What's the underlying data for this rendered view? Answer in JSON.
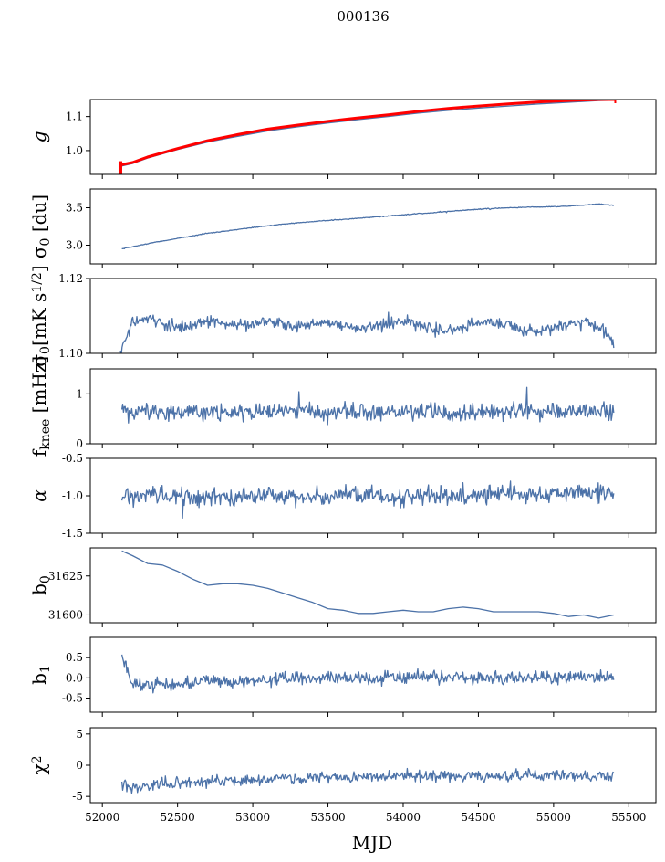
{
  "chart_data": {
    "type": "line",
    "title": "000136",
    "xlabel": "MJD",
    "x_range": [
      51920,
      55680
    ],
    "x_ticks": [
      "52000",
      "52500",
      "53000",
      "53500",
      "54000",
      "54500",
      "55000",
      "55500"
    ],
    "x_tick_values": [
      52000,
      52500,
      53000,
      53500,
      54000,
      54500,
      55000,
      55500
    ],
    "line_color": "#4c72a8",
    "overlay_color": "#ff0000",
    "grid": false,
    "panels": [
      {
        "id": "g",
        "ylabel": "g",
        "ylim": [
          0.93,
          1.15
        ],
        "y_ticks": [
          "1.0",
          "1.1"
        ],
        "y_tick_values": [
          1.0,
          1.1
        ],
        "series": [
          {
            "role": "data",
            "x": [
              52120,
              52200,
              52300,
              52500,
              52700,
              52900,
              53100,
              53300,
              53500,
              53700,
              53900,
              54100,
              54300,
              54500,
              54700,
              54900,
              55100,
              55300,
              55400
            ],
            "y": [
              0.954,
              0.962,
              0.978,
              1.003,
              1.025,
              1.042,
              1.058,
              1.07,
              1.081,
              1.091,
              1.1,
              1.11,
              1.118,
              1.125,
              1.131,
              1.137,
              1.142,
              1.147,
              1.148
            ]
          },
          {
            "role": "overlay",
            "x": [
              52120,
              52200,
              52300,
              52500,
              52700,
              52900,
              53100,
              53300,
              53500,
              53700,
              53900,
              54100,
              54300,
              54500,
              54700,
              54900,
              55100,
              55300,
              55410
            ],
            "y": [
              0.958,
              0.965,
              0.981,
              1.006,
              1.029,
              1.047,
              1.063,
              1.075,
              1.086,
              1.096,
              1.105,
              1.115,
              1.124,
              1.131,
              1.137,
              1.143,
              1.147,
              1.15,
              1.15
            ]
          }
        ]
      },
      {
        "id": "sigma0-du",
        "ylabel": "σ0 [du]",
        "ylim": [
          2.75,
          3.75
        ],
        "y_ticks": [
          "3.0",
          "3.5"
        ],
        "y_tick_values": [
          3.0,
          3.5
        ],
        "series": [
          {
            "role": "data",
            "x": [
              52130,
              52300,
              52500,
              52700,
              52900,
              53100,
              53300,
              53500,
              53700,
              53900,
              54100,
              54300,
              54500,
              54700,
              54900,
              55100,
              55300,
              55400
            ],
            "y": [
              2.95,
              3.02,
              3.09,
              3.16,
              3.21,
              3.26,
              3.3,
              3.33,
              3.36,
              3.39,
              3.42,
              3.45,
              3.48,
              3.5,
              3.51,
              3.52,
              3.55,
              3.53
            ]
          }
        ]
      },
      {
        "id": "sigma0-mk",
        "ylabel": "σ0[mK s1/2]",
        "ylim": [
          1.1,
          1.12
        ],
        "y_ticks": [
          "1.10",
          "1.12"
        ],
        "y_tick_values": [
          1.1,
          1.12
        ],
        "series": [
          {
            "role": "data",
            "x": [
              52120,
              52150,
              52200,
              52300,
              52400,
              52500,
              52600,
              52700,
              52800,
              52900,
              53000,
              53100,
              53200,
              53300,
              53400,
              53500,
              53600,
              53700,
              53800,
              53900,
              54000,
              54100,
              54200,
              54300,
              54400,
              54500,
              54600,
              54700,
              54800,
              54900,
              55000,
              55100,
              55200,
              55300,
              55400
            ],
            "y": [
              1.1005,
              1.103,
              1.1085,
              1.109,
              1.108,
              1.107,
              1.1075,
              1.1085,
              1.108,
              1.1075,
              1.1078,
              1.1088,
              1.108,
              1.1072,
              1.1078,
              1.1085,
              1.1075,
              1.1065,
              1.107,
              1.108,
              1.1082,
              1.1075,
              1.1065,
              1.106,
              1.107,
              1.1082,
              1.1085,
              1.1076,
              1.1062,
              1.1058,
              1.1068,
              1.108,
              1.1084,
              1.107,
              1.103
            ]
          }
        ]
      },
      {
        "id": "fknee",
        "ylabel": "fknee [mHz]",
        "ylim": [
          0,
          1.5
        ],
        "y_ticks": [
          "0",
          "1"
        ],
        "y_tick_values": [
          0,
          1
        ],
        "series": [
          {
            "role": "data",
            "x": [
              52130,
              52300,
              52500,
              52700,
              52900,
              53100,
              53300,
              53500,
              53700,
              53900,
              54100,
              54300,
              54500,
              54700,
              54900,
              55100,
              55300,
              55400
            ],
            "y": [
              0.62,
              0.66,
              0.64,
              0.63,
              0.62,
              0.63,
              0.65,
              0.62,
              0.63,
              0.65,
              0.64,
              0.62,
              0.64,
              0.66,
              0.63,
              0.65,
              0.67,
              0.64
            ]
          }
        ]
      },
      {
        "id": "alpha",
        "ylabel": "α",
        "ylim": [
          -1.5,
          -0.5
        ],
        "y_ticks": [
          "-1.5",
          "-1.0",
          "-0.5"
        ],
        "y_tick_values": [
          -1.5,
          -1.0,
          -0.5
        ],
        "series": [
          {
            "role": "data",
            "x": [
              52130,
              52300,
              52500,
              52700,
              52900,
              53100,
              53300,
              53500,
              53700,
              53900,
              54100,
              54300,
              54500,
              54700,
              54900,
              55100,
              55300,
              55400
            ],
            "y": [
              -1.02,
              -0.98,
              -1.03,
              -1.0,
              -1.01,
              -0.99,
              -1.02,
              -1.0,
              -0.98,
              -1.01,
              -0.99,
              -1.0,
              -0.97,
              -0.96,
              -0.98,
              -0.95,
              -0.96,
              -0.94
            ]
          }
        ]
      },
      {
        "id": "b0",
        "ylabel": "b0",
        "ylim": [
          31595,
          31643
        ],
        "y_ticks": [
          "31600",
          "31625"
        ],
        "y_tick_values": [
          31600,
          31625
        ],
        "series": [
          {
            "role": "data",
            "x": [
              52130,
              52200,
              52300,
              52400,
              52500,
              52600,
              52700,
              52800,
              52900,
              53000,
              53100,
              53200,
              53300,
              53400,
              53500,
              53600,
              53700,
              53800,
              53900,
              54000,
              54100,
              54200,
              54300,
              54400,
              54500,
              54600,
              54700,
              54800,
              54900,
              55000,
              55100,
              55200,
              55300,
              55400
            ],
            "y": [
              31641,
              31638,
              31633,
              31632,
              31628,
              31623,
              31619,
              31620,
              31620,
              31619,
              31617,
              31614,
              31611,
              31608,
              31604,
              31603,
              31601,
              31601,
              31602,
              31603,
              31602,
              31602,
              31604,
              31605,
              31604,
              31602,
              31602,
              31602,
              31602,
              31601,
              31599,
              31600,
              31598,
              31600
            ]
          }
        ]
      },
      {
        "id": "b1",
        "ylabel": "b1",
        "ylim": [
          -0.85,
          1.0
        ],
        "y_ticks": [
          "-0.5",
          "0.0",
          "0.5"
        ],
        "y_tick_values": [
          -0.5,
          0.0,
          0.5
        ],
        "series": [
          {
            "role": "data",
            "x": [
              52130,
              52200,
              52300,
              52400,
              52500,
              52600,
              52700,
              52800,
              52900,
              53000,
              53100,
              53200,
              53300,
              53400,
              53500,
              53600,
              53700,
              53800,
              53900,
              54000,
              54100,
              54200,
              54300,
              54400,
              54500,
              54600,
              54700,
              54800,
              54900,
              55000,
              55100,
              55200,
              55300,
              55400
            ],
            "y": [
              0.55,
              -0.2,
              -0.18,
              -0.15,
              -0.2,
              -0.1,
              -0.05,
              -0.1,
              -0.08,
              -0.05,
              -0.08,
              -0.02,
              0.0,
              -0.05,
              0.02,
              -0.02,
              0.0,
              -0.05,
              0.0,
              0.02,
              0.05,
              0.03,
              0.0,
              0.02,
              -0.02,
              0.0,
              0.02,
              -0.05,
              0.0,
              -0.03,
              0.05,
              0.0,
              0.05,
              0.02
            ]
          }
        ]
      },
      {
        "id": "chi2",
        "ylabel": "χ2",
        "ylim": [
          -6,
          6
        ],
        "y_ticks": [
          "-5",
          "0",
          "5"
        ],
        "y_tick_values": [
          -5,
          0,
          5
        ],
        "series": [
          {
            "role": "data",
            "x": [
              52130,
              52200,
              52300,
              52400,
              52500,
              52600,
              52700,
              52800,
              52900,
              53000,
              53100,
              53200,
              53300,
              53400,
              53500,
              53600,
              53700,
              53800,
              53900,
              54000,
              54100,
              54200,
              54300,
              54400,
              54500,
              54600,
              54700,
              54800,
              54900,
              55000,
              55100,
              55200,
              55300,
              55400
            ],
            "y": [
              -3.0,
              -3.6,
              -3.2,
              -3.0,
              -3.0,
              -2.8,
              -2.6,
              -2.4,
              -2.4,
              -2.3,
              -2.2,
              -2.1,
              -2.2,
              -2.0,
              -2.0,
              -1.9,
              -1.8,
              -1.8,
              -1.9,
              -1.8,
              -1.7,
              -1.8,
              -1.8,
              -1.7,
              -1.8,
              -1.7,
              -1.7,
              -1.6,
              -1.8,
              -1.6,
              -1.7,
              -1.5,
              -1.7,
              -1.6
            ]
          }
        ]
      }
    ]
  }
}
